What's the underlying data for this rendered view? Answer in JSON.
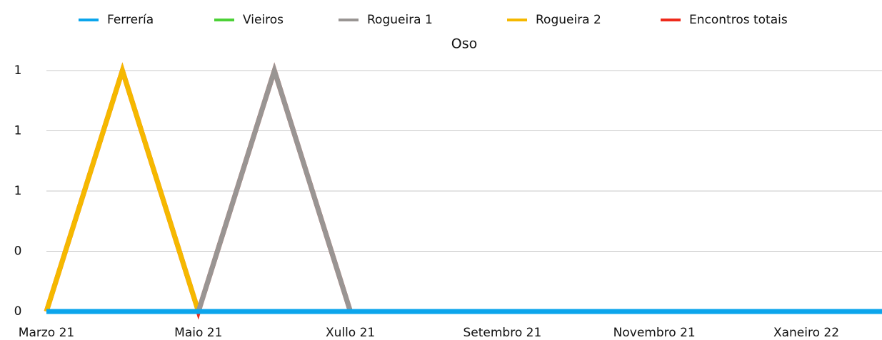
{
  "chart_data": {
    "type": "line",
    "title": "Oso",
    "categories": [
      "Marzo 21",
      null,
      "Maio 21",
      null,
      "Xullo 21",
      null,
      "Setembro 21",
      null,
      "Novembro 21",
      null,
      "Xaneiro 22",
      null
    ],
    "series": [
      {
        "name": "Ferrería",
        "color": "#0ba5ec",
        "values": [
          0,
          0,
          0,
          0,
          0,
          0,
          0,
          0,
          0,
          0,
          0,
          0
        ]
      },
      {
        "name": "Vieiros",
        "color": "#4cd137",
        "values": [
          0,
          0,
          0,
          0,
          0,
          0,
          0,
          0,
          0,
          0,
          0,
          0
        ]
      },
      {
        "name": "Rogueira 1",
        "color": "#999593",
        "values": [
          0,
          0,
          0,
          1,
          0,
          0,
          0,
          0,
          0,
          0,
          0,
          0
        ]
      },
      {
        "name": "Rogueira 2",
        "color": "#f5b800",
        "values": [
          0,
          1,
          0,
          0,
          0,
          0,
          0,
          0,
          0,
          0,
          0,
          0
        ]
      },
      {
        "name": "Encontros totais",
        "color": "#ee2a1b",
        "values": [
          0,
          1,
          0,
          1,
          0,
          0,
          0,
          0,
          0,
          0,
          0,
          0
        ]
      }
    ],
    "ylim": [
      0,
      1
    ],
    "yticks": [
      0,
      {
        "value": 0.25,
        "label": "0"
      },
      {
        "value": 0.5,
        "label": "1"
      },
      {
        "value": 0.75,
        "label": "1"
      },
      1
    ],
    "grid": true,
    "legend": "top"
  }
}
